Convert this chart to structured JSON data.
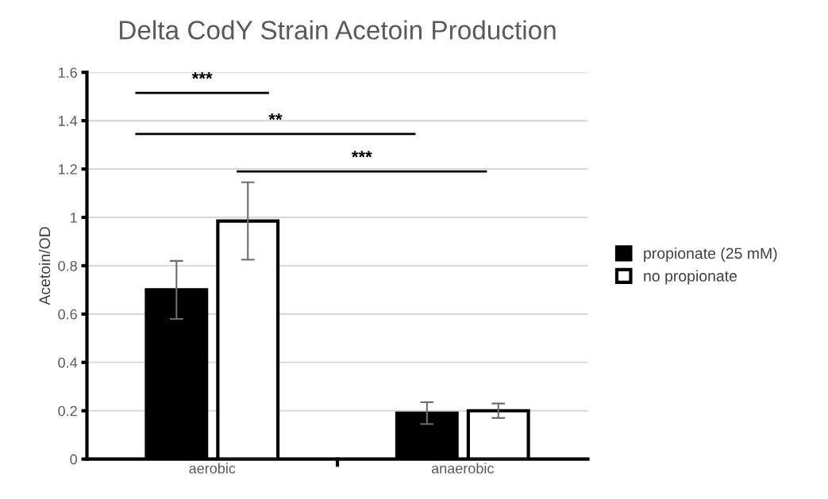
{
  "chart_data": {
    "type": "bar",
    "title": "Delta CodY Strain Acetoin Production",
    "ylabel": "Acetoin/OD",
    "categories": [
      "aerobic",
      "anaerobic"
    ],
    "series": [
      {
        "name": "propionate (25 mM)",
        "color": "#000000",
        "values": [
          0.7,
          0.19
        ],
        "errors": [
          0.12,
          0.045
        ]
      },
      {
        "name": "no propionate",
        "color": "#ffffff",
        "values": [
          0.985,
          0.2
        ],
        "errors": [
          0.16,
          0.03
        ]
      }
    ],
    "ylim": [
      0,
      1.6
    ],
    "yticks": [
      0,
      0.2,
      0.4,
      0.6,
      0.8,
      1,
      1.2,
      1.4,
      1.6
    ],
    "grid": "y",
    "legend": "right",
    "annotations": [
      "***",
      "**",
      "***"
    ]
  }
}
